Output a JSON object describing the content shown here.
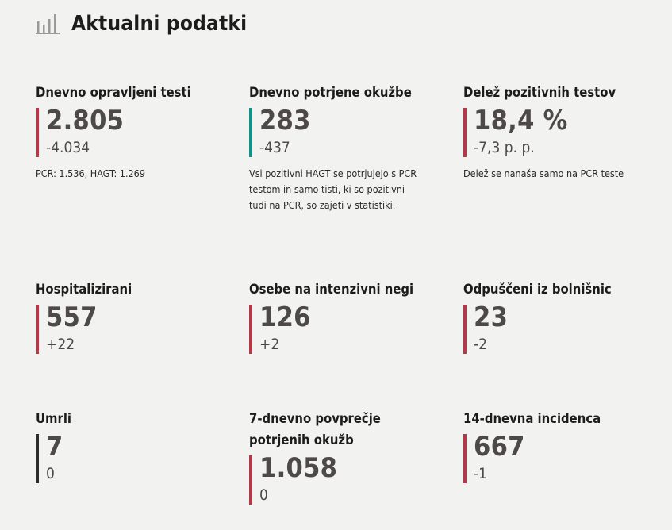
{
  "header": {
    "title": "Aktualni podatki",
    "icon": "bar-chart-icon",
    "icon_color": "#9a9a9a"
  },
  "colors": {
    "red_accent": "#b03a48",
    "teal_accent": "#168f87",
    "dark_accent": "#2b2b2b",
    "value_text": "#4d4948",
    "background": "#f2f2f0"
  },
  "cards": {
    "tests": {
      "title": "Dnevno opravljeni testi",
      "value": "2.805",
      "change": "-4.034",
      "note": "PCR: 1.536, HAGT: 1.269"
    },
    "confirmed": {
      "title": "Dnevno potrjene okužbe",
      "value": "283",
      "change": "-437",
      "note": "Vsi pozitivni HAGT se potrjujejo s PCR testom in samo tisti, ki so pozitivni tudi na PCR, so zajeti v statistiki."
    },
    "positive_share": {
      "title": "Delež pozitivnih testov",
      "value": "18,4 %",
      "change": "-7,3 p. p.",
      "note": "Delež se nanaša samo na PCR teste"
    },
    "hospitalized": {
      "title": "Hospitalizirani",
      "value": "557",
      "change": "+22"
    },
    "icu": {
      "title": "Osebe na intenzivni negi",
      "value": "126",
      "change": "+2"
    },
    "discharged": {
      "title": "Odpuščeni iz bolnišnic",
      "value": "23",
      "change": "-2"
    },
    "deaths": {
      "title": "Umrli",
      "value": "7",
      "change": "0"
    },
    "avg7": {
      "title": "7-dnevno povprečje potrjenih okužb",
      "value": "1.058",
      "change": "0"
    },
    "incidence14": {
      "title": "14-dnevna incidenca",
      "value": "667",
      "change": "-1"
    }
  }
}
